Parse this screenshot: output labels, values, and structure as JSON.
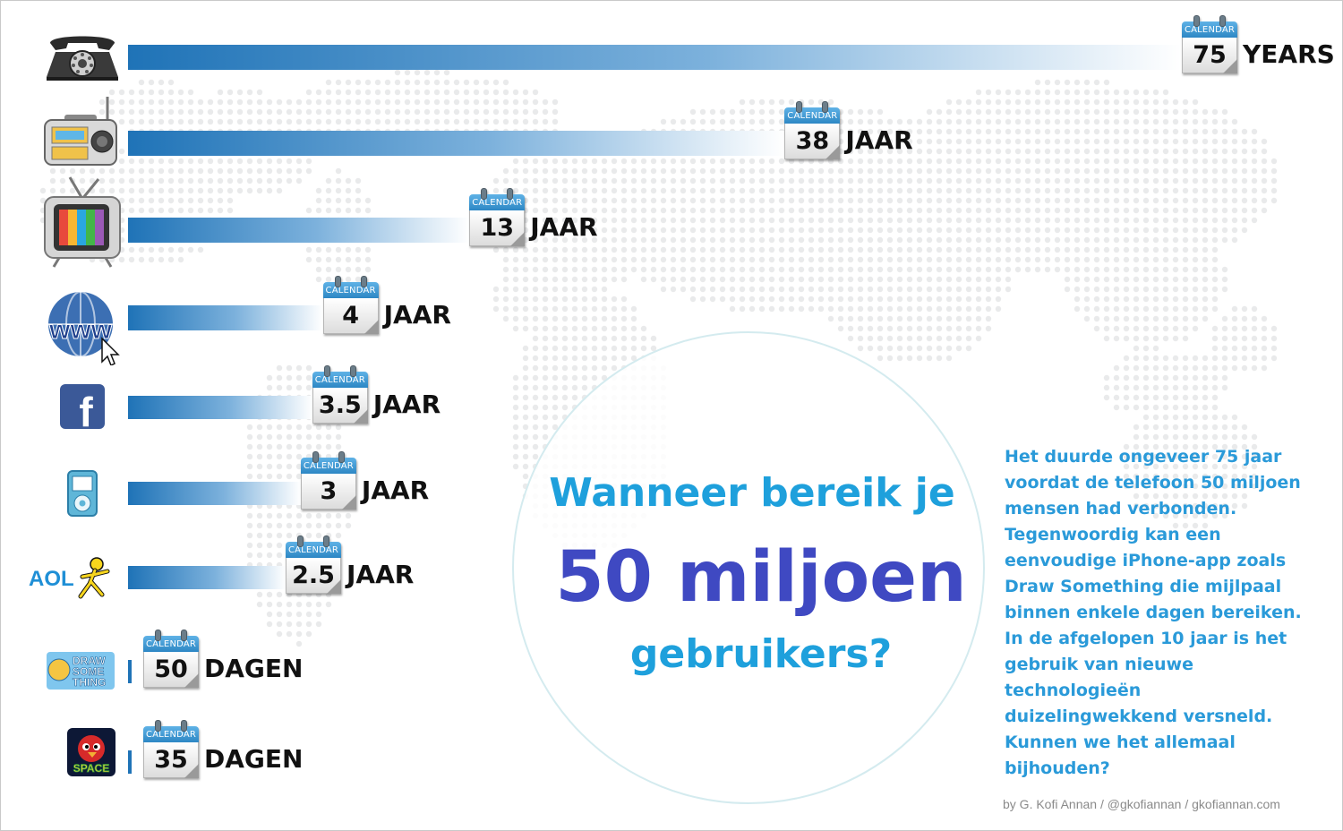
{
  "chart_data": {
    "type": "bar",
    "title": "",
    "xlabel": "",
    "ylabel": "",
    "categories": [
      "telephone",
      "radio",
      "television",
      "internet",
      "facebook",
      "ipod",
      "aol",
      "draw-something",
      "angry-birds-space"
    ],
    "values": [
      75,
      38,
      13,
      4,
      3.5,
      3,
      2.5,
      50,
      35
    ],
    "units": [
      "YEARS",
      "JAAR",
      "JAAR",
      "JAAR",
      "JAAR",
      "JAAR",
      "JAAR",
      "DAGEN",
      "DAGEN"
    ],
    "value_labels": [
      "75",
      "38",
      "13",
      "4",
      "3.5",
      "3",
      "2.5",
      "50",
      "35"
    ],
    "calendar_label": "CALENDAR",
    "orientation": "horizontal",
    "bar_color": "#1f73b7"
  },
  "icons": {
    "aol_text": "AOL",
    "draw_something_text": [
      "DRAW",
      "SOME",
      "THING"
    ],
    "angry_birds_text": "SPACE",
    "www_text": "www",
    "facebook_text": "f"
  },
  "headline": {
    "line1": "Wanneer bereik je",
    "big": "50 miljoen",
    "line3": "gebruikers?"
  },
  "description": [
    "Het duurde ongeveer 75 jaar",
    "voordat de telefoon 50 miljoen",
    "mensen had verbonden.",
    "Tegenwoordig kan een",
    "eenvoudige iPhone-app zoals",
    "Draw Something die mijlpaal",
    "binnen enkele dagen bereiken.",
    "In de afgelopen 10 jaar is het",
    "gebruik van nieuwe",
    "technologieën",
    "duizelingwekkend versneld.",
    "Kunnen we het allemaal",
    "bijhouden?"
  ],
  "credit": "by G. Kofi Annan / @gkofiannan / gkofiannan.com",
  "colors": {
    "accent_blue": "#1ea0dc",
    "headline_purple": "#3f49c2",
    "map_dots": "#e9eaeb"
  }
}
